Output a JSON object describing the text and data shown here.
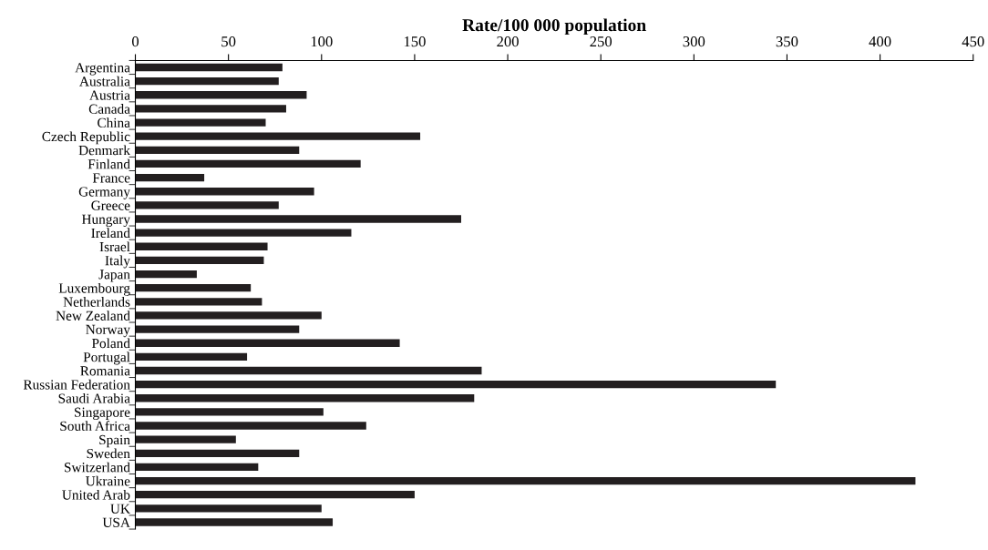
{
  "chart_data": {
    "type": "bar",
    "orientation": "horizontal",
    "xlabel": "Rate/100 000 population",
    "categories": [
      "Argentina",
      "Australia",
      "Austria",
      "Canada",
      "China",
      "Czech Republic",
      "Denmark",
      "Finland",
      "France",
      "Germany",
      "Greece",
      "Hungary",
      "Ireland",
      "Israel",
      "Italy",
      "Japan",
      "Luxembourg",
      "Netherlands",
      "New Zealand",
      "Norway",
      "Poland",
      "Portugal",
      "Romania",
      "Russian Federation",
      "Saudi Arabia",
      "Singapore",
      "South Africa",
      "Spain",
      "Sweden",
      "Switzerland",
      "Ukraine",
      "United Arab",
      "UK",
      "USA"
    ],
    "values": [
      79,
      77,
      92,
      81,
      70,
      153,
      88,
      121,
      37,
      96,
      77,
      175,
      116,
      71,
      69,
      33,
      62,
      68,
      100,
      88,
      142,
      60,
      186,
      344,
      182,
      101,
      124,
      54,
      88,
      66,
      419,
      150,
      100,
      106
    ],
    "color": "#231f20",
    "xlim": [
      0,
      450
    ],
    "xticks": [
      0,
      50,
      100,
      150,
      200,
      250,
      300,
      350,
      400,
      450
    ],
    "grid": false,
    "legend": false
  }
}
